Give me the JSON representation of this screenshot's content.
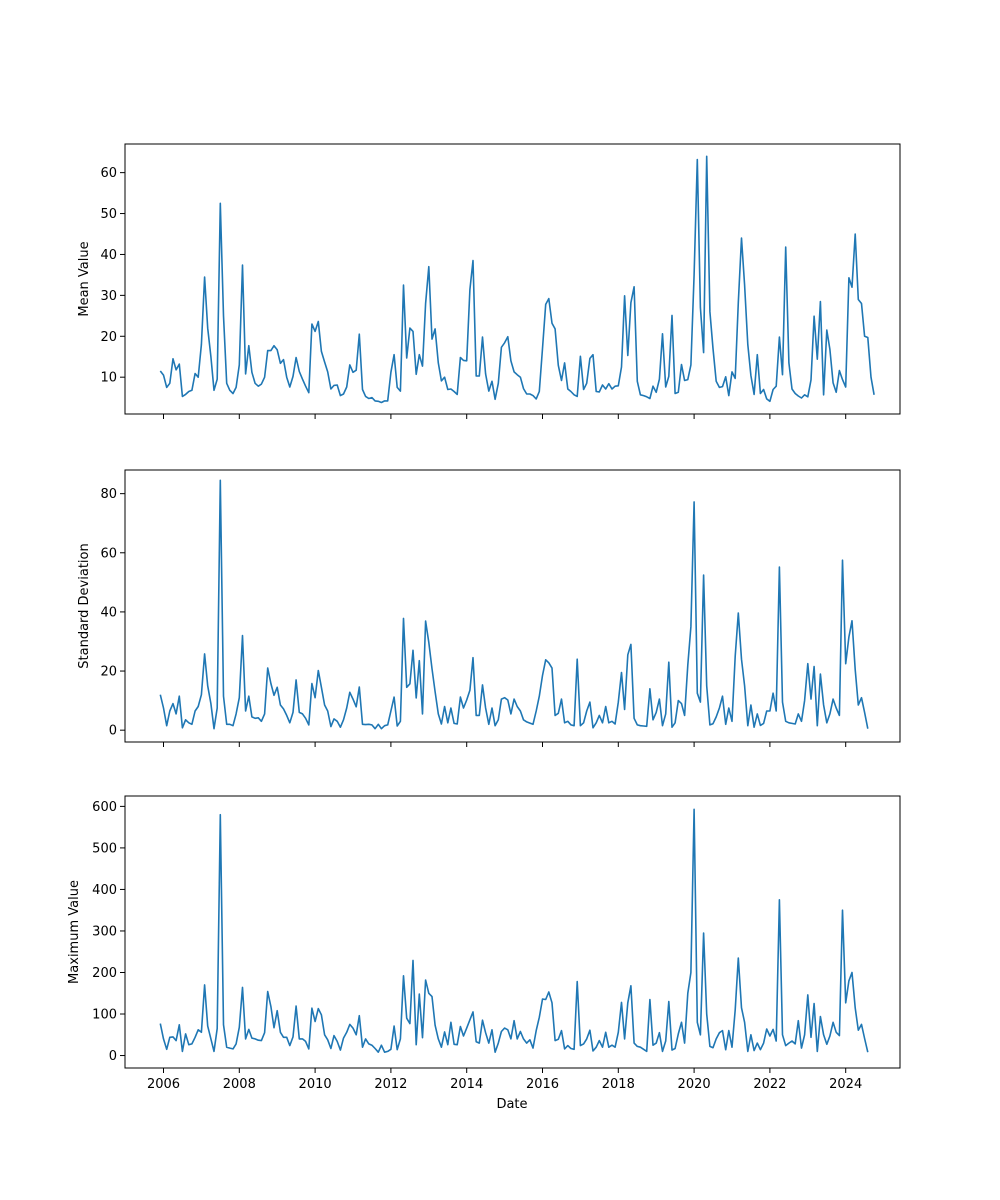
{
  "figure": {
    "x_axis_label": "Date",
    "x_tick_labels": [
      "2006",
      "2008",
      "2010",
      "2012",
      "2014",
      "2016",
      "2018",
      "2020",
      "2022",
      "2024"
    ],
    "line_color": "#1f77b4"
  },
  "chart_data": [
    {
      "type": "line",
      "title": "",
      "xlabel": "",
      "ylabel": "Mean Value",
      "x_start": "2005-12",
      "x_end": "2024-07",
      "x_interval": "monthly",
      "ylim": [
        1,
        67
      ],
      "yticks": [
        10,
        20,
        30,
        40,
        50,
        60
      ],
      "grid": false,
      "series": [
        {
          "values": [
            11.5,
            10.5,
            7.5,
            8.5,
            14.5,
            11.8,
            13.2,
            5.3,
            5.8,
            6.5,
            6.8,
            10.9,
            10.0,
            18,
            34.5,
            22,
            15,
            6.8,
            9.5,
            52.5,
            25,
            8.5,
            6.8,
            6.0,
            7.5,
            13,
            37.4,
            10.8,
            17.7,
            11.2,
            8.5,
            7.8,
            8.3,
            10,
            16.5,
            16.5,
            17.7,
            16.7,
            13.4,
            14.3,
            10,
            7.6,
            10.2,
            14.8,
            11.4,
            9.5,
            7.8,
            6.2,
            23.0,
            21.2,
            23.6,
            16.3,
            13.7,
            11.3,
            7.1,
            8.0,
            8.1,
            5.5,
            5.9,
            7.6,
            13,
            11.2,
            11.7,
            20.5,
            7.0,
            5.3,
            4.8,
            5.0,
            4.2,
            4.1,
            3.8,
            4.2,
            4.2,
            11.2,
            15.5,
            7.5,
            6.6,
            32.5,
            14.7,
            22,
            21.2,
            10.7,
            15.5,
            12.7,
            28,
            37,
            19.3,
            21.8,
            13.5,
            9.1,
            10.0,
            7.0,
            7.1,
            6.5,
            5.8,
            14.8,
            14.1,
            14.0,
            31.4,
            38.5,
            10.3,
            10.3,
            19.8,
            10.8,
            6.6,
            9.0,
            4.6,
            8.5,
            17.3,
            18.4,
            19.9,
            14,
            11.3,
            10.6,
            10,
            7.2,
            5.9,
            5.9,
            5.5,
            4.7,
            6.5,
            17,
            27.8,
            29.2,
            23.2,
            21.8,
            12.9,
            9.2,
            13.5,
            7.1,
            6.5,
            5.7,
            5.3,
            15.1,
            7.0,
            8.5,
            14.6,
            15.5,
            6.5,
            6.4,
            8.1,
            7.1,
            8.4,
            7.1,
            7.8,
            7.9,
            12.5,
            29.9,
            15.3,
            28.2,
            32.1,
            9.0,
            5.7,
            5.5,
            5.2,
            4.8,
            7.8,
            6.3,
            9.5,
            20.6,
            7.6,
            10.2,
            25.1,
            6,
            6.3,
            13.1,
            9.2,
            9.4,
            13,
            35,
            63.2,
            27,
            16,
            64,
            26,
            17,
            9,
            7.5,
            7.7,
            10.1,
            5.5,
            11.3,
            9.7,
            28.2,
            44,
            32.5,
            18,
            10.4,
            5.8,
            15.5,
            6,
            7,
            4.7,
            4.1,
            7,
            7.8,
            19.8,
            10.6,
            41.8,
            13.5,
            7.1,
            6,
            5.4,
            4.9,
            5.7,
            5.2,
            9.3,
            24.9,
            14.4,
            28.5,
            5.7,
            21.5,
            16.8,
            8.6,
            6.3,
            11.6,
            9.4,
            7.6,
            34.3,
            32,
            45,
            29,
            28,
            20,
            19.7,
            10,
            5.7
          ]
        }
      ]
    },
    {
      "type": "line",
      "title": "",
      "xlabel": "",
      "ylabel": "Standard Deviation",
      "x_start": "2005-12",
      "x_end": "2024-07",
      "x_interval": "monthly",
      "ylim": [
        -4,
        88
      ],
      "yticks": [
        0,
        20,
        40,
        60,
        80
      ],
      "grid": false,
      "series": [
        {
          "values": [
            12,
            7.5,
            1.5,
            6.5,
            9,
            5.5,
            11.5,
            0.8,
            3.5,
            2.5,
            2.0,
            6.5,
            8.0,
            12,
            25.8,
            15,
            9,
            0.5,
            7.5,
            84.5,
            11.5,
            2.0,
            2.0,
            1.5,
            5.5,
            11,
            32,
            6.5,
            11.5,
            4.5,
            4.0,
            4.2,
            3.0,
            5.5,
            21,
            15.8,
            11.8,
            14.5,
            8.5,
            7.2,
            5.0,
            2.5,
            6.0,
            17,
            6.0,
            5.5,
            4.0,
            1.8,
            15.8,
            11.0,
            20.2,
            14.5,
            8.5,
            6.5,
            1.2,
            3.8,
            3.0,
            1.0,
            3.5,
            7.5,
            12.8,
            10.5,
            7.9,
            14.6,
            2.0,
            1.9,
            2.0,
            1.8,
            0.5,
            2.0,
            0.5,
            1.5,
            1.8,
            6.5,
            11.2,
            1.4,
            3.0,
            37.8,
            14.5,
            15.7,
            27,
            10.9,
            23.5,
            5.5,
            36.9,
            29.7,
            20.8,
            13,
            5.5,
            2.1,
            8.0,
            2.5,
            7.5,
            2.3,
            2.1,
            11.2,
            7.5,
            10.2,
            13.5,
            24.5,
            5.0,
            5.0,
            15.3,
            7.5,
            2.0,
            7.5,
            1.5,
            3.5,
            10.5,
            11.0,
            10.2,
            5.5,
            10.5,
            8.0,
            6.5,
            3.5,
            2.8,
            2.4,
            2.0,
            6.5,
            11.5,
            18.5,
            23.8,
            22.8,
            21.0,
            5.0,
            5.7,
            10.5,
            2.5,
            3.0,
            1.8,
            1.5,
            24.0,
            1.5,
            2.5,
            6.5,
            9.5,
            0.8,
            2.5,
            5.0,
            2.5,
            8.0,
            2.5,
            3.0,
            2.1,
            9.5,
            19.5,
            7.0,
            25.5,
            29,
            4.0,
            1.8,
            1.5,
            1.4,
            1.3,
            14,
            3.5,
            6,
            10.5,
            1.5,
            5.5,
            23,
            1,
            2.5,
            10,
            9,
            5,
            22,
            35,
            77.2,
            12.5,
            9.5,
            52.5,
            15,
            1.8,
            2.2,
            4.5,
            7.5,
            11.5,
            2.0,
            7.5,
            3.0,
            25,
            39.6,
            24,
            15,
            1.5,
            8.5,
            1.0,
            5.5,
            1.6,
            2.3,
            6.5,
            6.5,
            12.5,
            6.5,
            55.2,
            9.5,
            3.0,
            2.5,
            2.3,
            2.1,
            5.5,
            3.0,
            10.0,
            22.5,
            10.5,
            21.5,
            1.5,
            19,
            8.5,
            2.5,
            5.5,
            10.5,
            7.5,
            5.0,
            57.5,
            22.5,
            31.5,
            37,
            20.5,
            8.5,
            11,
            6,
            0.5
          ]
        }
      ]
    },
    {
      "type": "line",
      "title": "",
      "xlabel": "Date",
      "ylabel": "Maximum Value",
      "x_start": "2005-12",
      "x_end": "2024-07",
      "x_interval": "monthly",
      "ylim": [
        -30,
        625
      ],
      "yticks": [
        0,
        100,
        200,
        300,
        400,
        500,
        600
      ],
      "grid": false,
      "series": [
        {
          "values": [
            77,
            40,
            15,
            44,
            45,
            36,
            74,
            10,
            52,
            26,
            28,
            44,
            62,
            56,
            170,
            71,
            40,
            10,
            65,
            580,
            74,
            20,
            18,
            16,
            28,
            68,
            164,
            40,
            63,
            42,
            40,
            37,
            36,
            55,
            154,
            118,
            67,
            108,
            56,
            44,
            44,
            24,
            45,
            119,
            40,
            40,
            34,
            16,
            114,
            82,
            113,
            98,
            50,
            38,
            17,
            48,
            34,
            13,
            42,
            56,
            75,
            66,
            50,
            96,
            20,
            40,
            28,
            25,
            17,
            8,
            25,
            8,
            10,
            15,
            71,
            14,
            40,
            192,
            90,
            77,
            229,
            26,
            148,
            43,
            182,
            150,
            142,
            73,
            40,
            20,
            57,
            26,
            80,
            27,
            26,
            70,
            47,
            66,
            86,
            105,
            33,
            30,
            85,
            55,
            30,
            62,
            8,
            30,
            58,
            66,
            62,
            40,
            84,
            40,
            58,
            40,
            30,
            38,
            18,
            60,
            92,
            136,
            135,
            153,
            127,
            36,
            39,
            60,
            16,
            24,
            17,
            15,
            178,
            24,
            28,
            40,
            61,
            11,
            20,
            36,
            20,
            56,
            20,
            25,
            20,
            56,
            128,
            40,
            127,
            168,
            30,
            22,
            20,
            15,
            10,
            135,
            25,
            30,
            55,
            10,
            35,
            130,
            13,
            17,
            52,
            80,
            30,
            150,
            200,
            593,
            80,
            50,
            295,
            100,
            22,
            19,
            40,
            55,
            60,
            14,
            60,
            20,
            110,
            235,
            115,
            80,
            10,
            50,
            12,
            30,
            14,
            30,
            64,
            47,
            63,
            35,
            375,
            50,
            24,
            30,
            35,
            28,
            84,
            18,
            50,
            146,
            44,
            125,
            10,
            94,
            50,
            27,
            47,
            80,
            56,
            48,
            350,
            127,
            180,
            200,
            115,
            61,
            75,
            41,
            8
          ]
        }
      ]
    }
  ]
}
